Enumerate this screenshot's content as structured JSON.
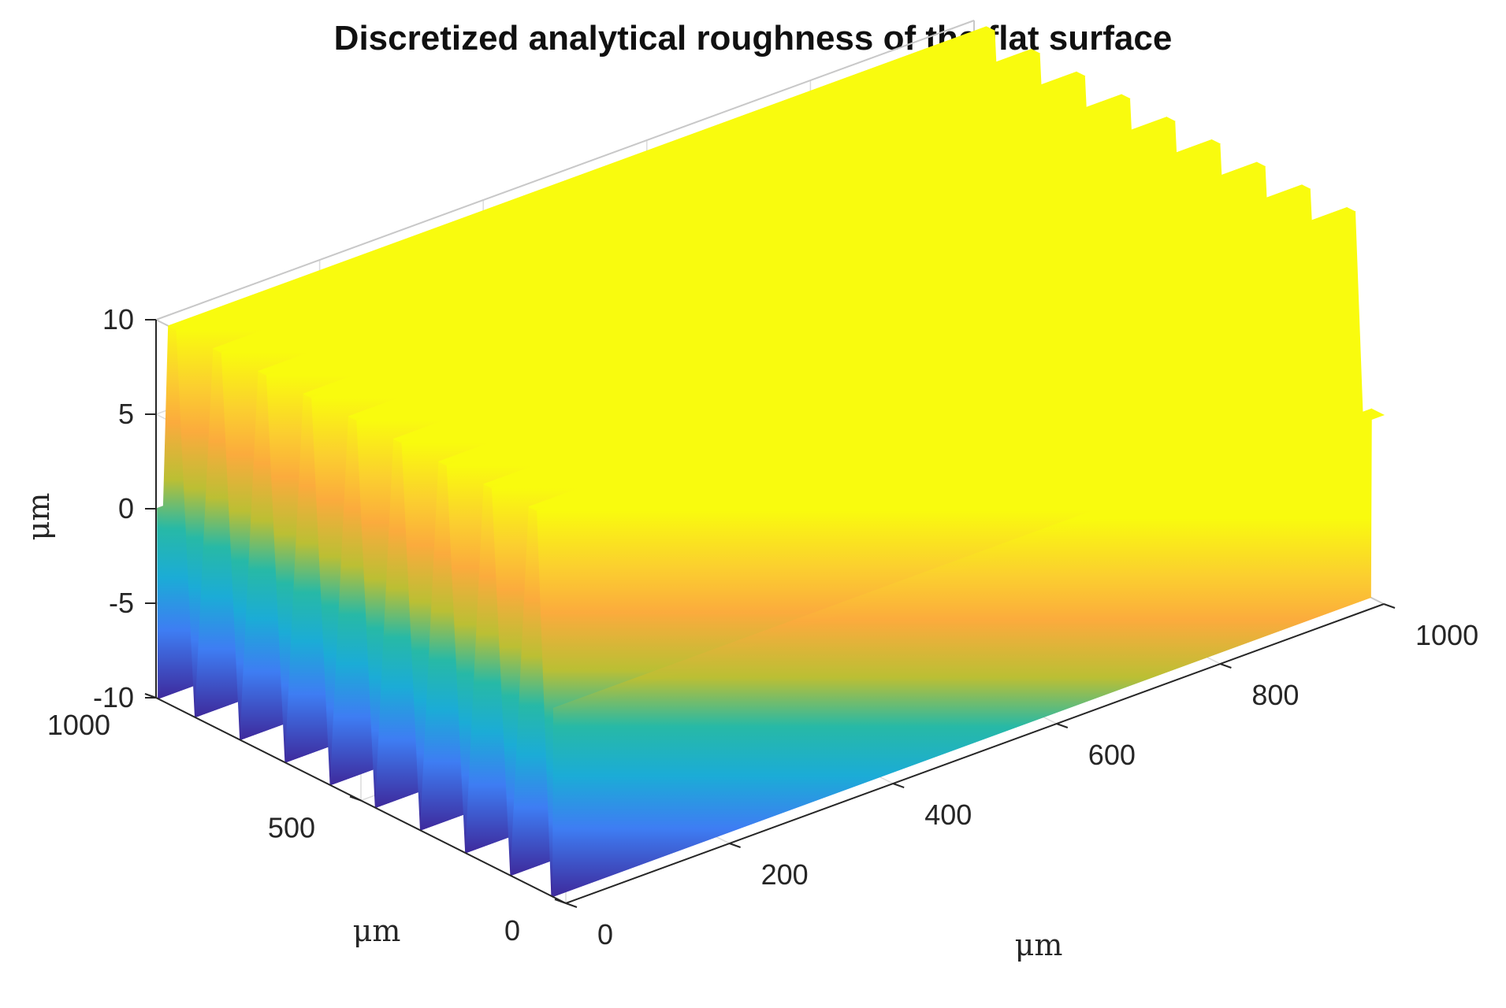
{
  "chart_data": {
    "type": "surface3d",
    "title": "Discretized analytical roughness of the flat surface",
    "xlabel": "μm",
    "ylabel": "μm",
    "zlabel": "μm",
    "xlim": [
      0,
      1000
    ],
    "ylim": [
      0,
      1000
    ],
    "zlim": [
      -10,
      10
    ],
    "xticks": [
      0,
      200,
      400,
      600,
      800,
      1000
    ],
    "yticks": [
      0,
      500,
      1000
    ],
    "zticks": [
      -10,
      -5,
      0,
      5,
      10
    ],
    "profile": {
      "description": "Surface constant along x; periodic ridges along y",
      "ridge_count": 9,
      "ridge_centers_um": [
        80,
        190,
        300,
        410,
        520,
        630,
        740,
        850,
        960
      ],
      "peak_height_um": 10,
      "valley_height_um": -10,
      "edge_height_um": 0
    },
    "colormap": "parula"
  }
}
